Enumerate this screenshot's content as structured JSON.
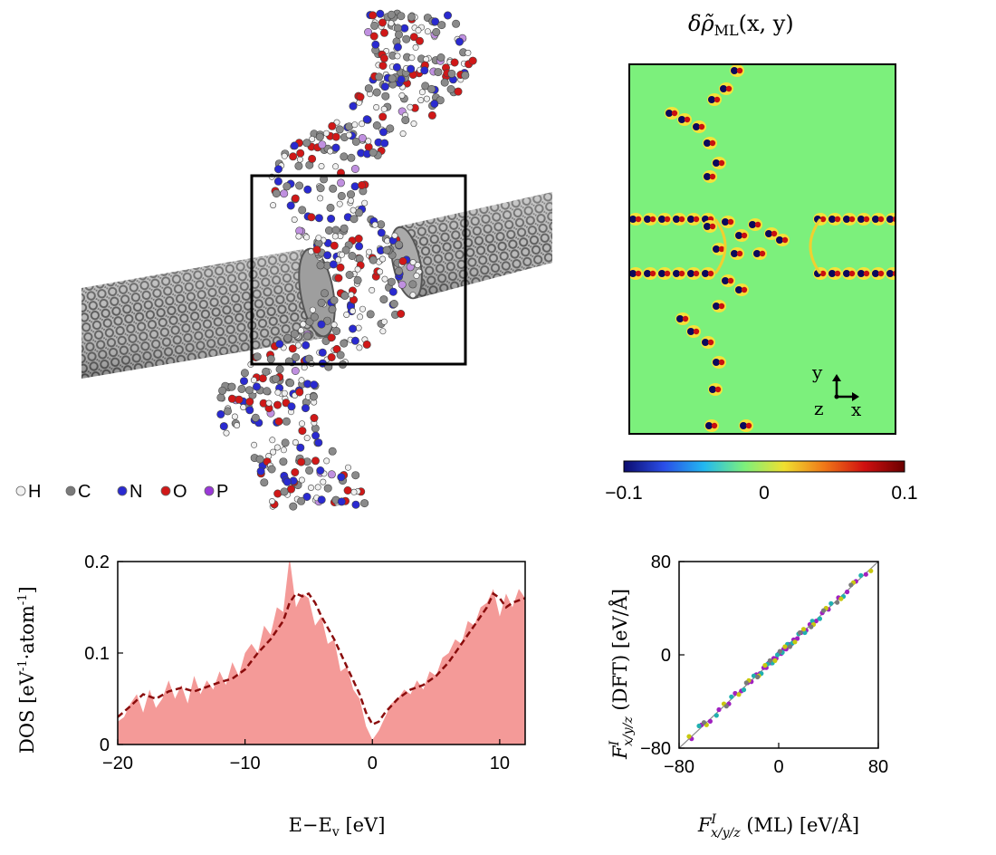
{
  "molecule": {
    "legend": [
      {
        "label": "H",
        "color": "#f2f2f2"
      },
      {
        "label": "C",
        "color": "#7a7a7a"
      },
      {
        "label": "N",
        "color": "#2a2ad0"
      },
      {
        "label": "O",
        "color": "#d01818"
      },
      {
        "label": "P",
        "color": "#9a38d8"
      }
    ]
  },
  "density_map": {
    "title_main": "δρ̃",
    "title_sub": "ML",
    "title_args": "(x, y)",
    "axis_y": "y",
    "axis_z": "z",
    "axis_x": "x",
    "colorbar": {
      "min": -0.1,
      "max": 0.1,
      "ticks": [
        "−0.1",
        "0",
        "0.1"
      ],
      "colors": [
        "#0c0c6e",
        "#2a4ee8",
        "#22b8f0",
        "#7cf07c",
        "#f0e030",
        "#f07818",
        "#d01010",
        "#6a0000"
      ]
    },
    "background_color": "#7cf07c"
  },
  "chart_data": [
    {
      "type": "area",
      "xlabel": "E−E",
      "xlabel_sub": "v",
      "xlabel_unit": "[eV]",
      "ylabel": "DOS [eV",
      "ylabel_sup1": "-1",
      "ylabel_mid": "·atom",
      "ylabel_sup2": "-1",
      "ylabel_end": "]",
      "xlim": [
        -20,
        12
      ],
      "ylim": [
        0,
        0.2
      ],
      "xticks": [
        "−20",
        "−10",
        "0",
        "10"
      ],
      "xtick_values": [
        -20,
        -10,
        0,
        10
      ],
      "yticks": [
        "0",
        "0.1",
        "0.2"
      ],
      "ytick_values": [
        0,
        0.1,
        0.2
      ],
      "series": [
        {
          "style": "filled-area",
          "color": "#f49a98",
          "x": [
            -20,
            -19.5,
            -19,
            -18.5,
            -18,
            -17.5,
            -17,
            -16.5,
            -16,
            -15.5,
            -15,
            -14.5,
            -14,
            -13.5,
            -13,
            -12.5,
            -12,
            -11.5,
            -11,
            -10.5,
            -10,
            -9.5,
            -9,
            -8.5,
            -8,
            -7.5,
            -7,
            -6.5,
            -6,
            -5.5,
            -5,
            -4.5,
            -4,
            -3.5,
            -3,
            -2.5,
            -2,
            -1.5,
            -1,
            -0.5,
            0,
            0.5,
            1,
            1.5,
            2,
            2.5,
            3,
            3.5,
            4,
            4.5,
            5,
            5.5,
            6,
            6.5,
            7,
            7.5,
            8,
            8.5,
            9,
            9.5,
            10,
            10.5,
            11,
            11.5,
            12
          ],
          "y": [
            0.025,
            0.03,
            0.045,
            0.055,
            0.035,
            0.06,
            0.04,
            0.05,
            0.07,
            0.05,
            0.065,
            0.045,
            0.075,
            0.055,
            0.07,
            0.06,
            0.08,
            0.065,
            0.09,
            0.075,
            0.1,
            0.11,
            0.1,
            0.13,
            0.12,
            0.15,
            0.145,
            0.205,
            0.15,
            0.165,
            0.16,
            0.13,
            0.14,
            0.11,
            0.115,
            0.08,
            0.085,
            0.06,
            0.05,
            0.02,
            0.005,
            0.015,
            0.03,
            0.045,
            0.05,
            0.06,
            0.055,
            0.07,
            0.06,
            0.08,
            0.075,
            0.095,
            0.1,
            0.115,
            0.11,
            0.135,
            0.13,
            0.15,
            0.155,
            0.17,
            0.14,
            0.165,
            0.15,
            0.17,
            0.16
          ]
        },
        {
          "style": "dashed-line",
          "color": "#8a0c0c",
          "x": [
            -20,
            -19,
            -18,
            -17,
            -16,
            -15,
            -14,
            -13,
            -12,
            -11,
            -10,
            -9,
            -8,
            -7,
            -6.5,
            -6,
            -5.5,
            -5,
            -4.5,
            -4,
            -3,
            -2,
            -1,
            -0.5,
            0,
            0.5,
            1,
            2,
            3,
            4,
            5,
            6,
            7,
            8,
            9,
            9.5,
            10,
            10.5,
            11,
            12
          ],
          "y": [
            0.03,
            0.042,
            0.055,
            0.05,
            0.058,
            0.062,
            0.058,
            0.063,
            0.068,
            0.072,
            0.082,
            0.1,
            0.115,
            0.135,
            0.155,
            0.165,
            0.162,
            0.165,
            0.155,
            0.14,
            0.115,
            0.085,
            0.055,
            0.035,
            0.022,
            0.025,
            0.035,
            0.05,
            0.06,
            0.065,
            0.075,
            0.09,
            0.11,
            0.13,
            0.15,
            0.165,
            0.16,
            0.15,
            0.155,
            0.16
          ]
        }
      ]
    },
    {
      "type": "scatter",
      "xlabel": "F",
      "xlabel_sup": "I",
      "xlabel_sub": "x/y/z",
      "xlabel_tail": " (ML) [eV/Å]",
      "ylabel": "F",
      "ylabel_sup": "I",
      "ylabel_sub": "x/y/z",
      "ylabel_tail": " (DFT) [eV/Å]",
      "xlim": [
        -80,
        80
      ],
      "ylim": [
        -80,
        80
      ],
      "xticks": [
        "−80",
        "0",
        "80"
      ],
      "xtick_values": [
        -80,
        0,
        80
      ],
      "yticks": [
        "−80",
        "0",
        "80"
      ],
      "ytick_values": [
        -80,
        0,
        80
      ],
      "series": [
        {
          "color": "#a020c0",
          "x": [
            -70,
            -62,
            -55,
            -48,
            -40,
            -35,
            -30,
            -25,
            -22,
            -18,
            -15,
            -12,
            -10,
            -8,
            -6,
            -4,
            -2,
            0,
            2,
            4,
            6,
            8,
            10,
            12,
            15,
            18,
            22,
            25,
            30,
            35,
            40,
            48,
            55,
            62,
            70
          ],
          "y": [
            -72,
            -60,
            -57,
            -47,
            -42,
            -33,
            -31,
            -24,
            -23,
            -17,
            -16,
            -11,
            -11,
            -7,
            -7,
            -3,
            -3,
            1,
            1,
            5,
            5,
            9,
            9,
            13,
            14,
            19,
            21,
            26,
            29,
            36,
            39,
            49,
            54,
            63,
            69
          ]
        },
        {
          "color": "#20b0b0",
          "x": [
            -64,
            -50,
            -38,
            -28,
            -20,
            -14,
            -9,
            -5,
            -1,
            3,
            7,
            11,
            16,
            21,
            27,
            33,
            42,
            52,
            66
          ],
          "y": [
            -61,
            -52,
            -36,
            -30,
            -18,
            -16,
            -8,
            -7,
            0,
            2,
            9,
            10,
            18,
            19,
            29,
            31,
            44,
            50,
            68
          ]
        },
        {
          "color": "#c8c810",
          "x": [
            -72,
            -58,
            -44,
            -32,
            -24,
            -16,
            -11,
            -3,
            5,
            13,
            20,
            28,
            38,
            50,
            60,
            74
          ],
          "y": [
            -70,
            -60,
            -42,
            -34,
            -22,
            -18,
            -9,
            -5,
            7,
            11,
            22,
            26,
            40,
            48,
            62,
            72
          ]
        },
        {
          "color": "#7a7a7a",
          "x": [
            -60,
            -42,
            -26,
            -17,
            -7,
            1,
            9,
            17,
            26,
            36,
            47,
            58
          ],
          "y": [
            -58,
            -44,
            -24,
            -19,
            -5,
            3,
            7,
            19,
            24,
            38,
            45,
            60
          ]
        }
      ]
    }
  ]
}
